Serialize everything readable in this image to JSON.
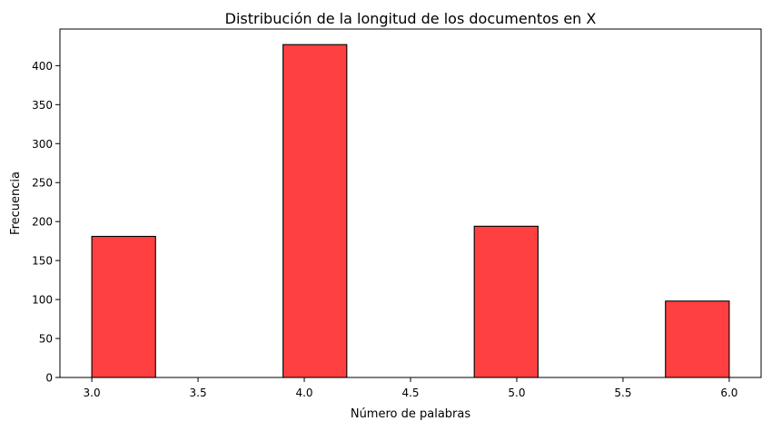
{
  "chart_data": {
    "type": "bar",
    "title": "Distribución de la longitud de los documentos en X",
    "xlabel": "Número de palabras",
    "ylabel": "Frecuencia",
    "xlim": [
      2.85,
      6.15
    ],
    "ylim": [
      0,
      447
    ],
    "grid": false,
    "bar_color": "#ff0000",
    "bar_opacity": 0.75,
    "edge_color": "#000000",
    "bins": [
      {
        "x0": 3.0,
        "x1": 3.3,
        "value": 181
      },
      {
        "x0": 3.3,
        "x1": 3.6,
        "value": 0
      },
      {
        "x0": 3.6,
        "x1": 3.9,
        "value": 0
      },
      {
        "x0": 3.9,
        "x1": 4.2,
        "value": 427
      },
      {
        "x0": 4.2,
        "x1": 4.5,
        "value": 0
      },
      {
        "x0": 4.5,
        "x1": 4.8,
        "value": 0
      },
      {
        "x0": 4.8,
        "x1": 5.1,
        "value": 194
      },
      {
        "x0": 5.1,
        "x1": 5.4,
        "value": 0
      },
      {
        "x0": 5.4,
        "x1": 5.7,
        "value": 0
      },
      {
        "x0": 5.7,
        "x1": 6.0,
        "value": 98
      }
    ],
    "xticks": [
      3.0,
      3.5,
      4.0,
      4.5,
      5.0,
      5.5,
      6.0
    ],
    "xtick_labels": [
      "3.0",
      "3.5",
      "4.0",
      "4.5",
      "5.0",
      "5.5",
      "6.0"
    ],
    "yticks": [
      0,
      50,
      100,
      150,
      200,
      250,
      300,
      350,
      400
    ],
    "ytick_labels": [
      "0",
      "50",
      "100",
      "150",
      "200",
      "250",
      "300",
      "350",
      "400"
    ]
  }
}
